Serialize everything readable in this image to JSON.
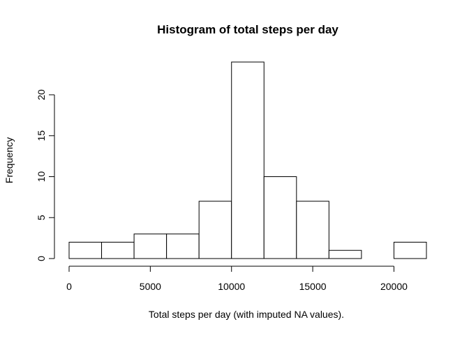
{
  "chart_data": {
    "type": "bar",
    "title": "Histogram of total steps per day",
    "xlabel": "Total steps per day (with imputed NA values).",
    "ylabel": "Frequency",
    "bin_edges": [
      0,
      2000,
      4000,
      6000,
      8000,
      10000,
      12000,
      14000,
      16000,
      18000,
      20000,
      22000
    ],
    "values": [
      2,
      2,
      3,
      3,
      7,
      24,
      10,
      7,
      1,
      0,
      2
    ],
    "x_ticks": [
      0,
      5000,
      10000,
      15000,
      20000
    ],
    "x_tick_labels": [
      "0",
      "5000",
      "10000",
      "15000",
      "20000"
    ],
    "y_ticks": [
      0,
      5,
      10,
      15,
      20
    ],
    "y_tick_labels": [
      "0",
      "5",
      "10",
      "15",
      "20"
    ],
    "xlim": [
      0,
      22000
    ],
    "ylim": [
      0,
      24
    ],
    "grid": false,
    "bar_fill": "#ffffff",
    "bar_stroke": "#000000"
  }
}
